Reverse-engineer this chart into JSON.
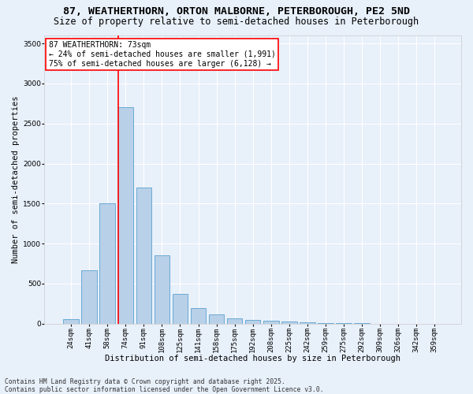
{
  "title_line1": "87, WEATHERTHORN, ORTON MALBORNE, PETERBOROUGH, PE2 5ND",
  "title_line2": "Size of property relative to semi-detached houses in Peterborough",
  "xlabel": "Distribution of semi-detached houses by size in Peterborough",
  "ylabel": "Number of semi-detached properties",
  "categories": [
    "24sqm",
    "41sqm",
    "58sqm",
    "74sqm",
    "91sqm",
    "108sqm",
    "125sqm",
    "141sqm",
    "158sqm",
    "175sqm",
    "192sqm",
    "208sqm",
    "225sqm",
    "242sqm",
    "259sqm",
    "275sqm",
    "292sqm",
    "309sqm",
    "326sqm",
    "342sqm",
    "359sqm"
  ],
  "values": [
    55,
    665,
    1500,
    2700,
    1700,
    850,
    370,
    190,
    120,
    70,
    45,
    35,
    25,
    15,
    10,
    8,
    5,
    3,
    2,
    1,
    1
  ],
  "bar_color": "#b8d0e8",
  "bar_edge_color": "#6aaad4",
  "vline_color": "red",
  "vline_index": 3,
  "annotation_text": "87 WEATHERTHORN: 73sqm\n← 24% of semi-detached houses are smaller (1,991)\n75% of semi-detached houses are larger (6,128) →",
  "annotation_box_color": "white",
  "annotation_box_edge_color": "red",
  "ylim": [
    0,
    3600
  ],
  "yticks": [
    0,
    500,
    1000,
    1500,
    2000,
    2500,
    3000,
    3500
  ],
  "background_color": "#e8f0fa",
  "grid_color": "white",
  "footer_text": "Contains HM Land Registry data © Crown copyright and database right 2025.\nContains public sector information licensed under the Open Government Licence v3.0.",
  "title_fontsize": 9.5,
  "subtitle_fontsize": 8.5,
  "axis_label_fontsize": 7.5,
  "tick_fontsize": 6.5,
  "annotation_fontsize": 7.0,
  "footer_fontsize": 5.8
}
